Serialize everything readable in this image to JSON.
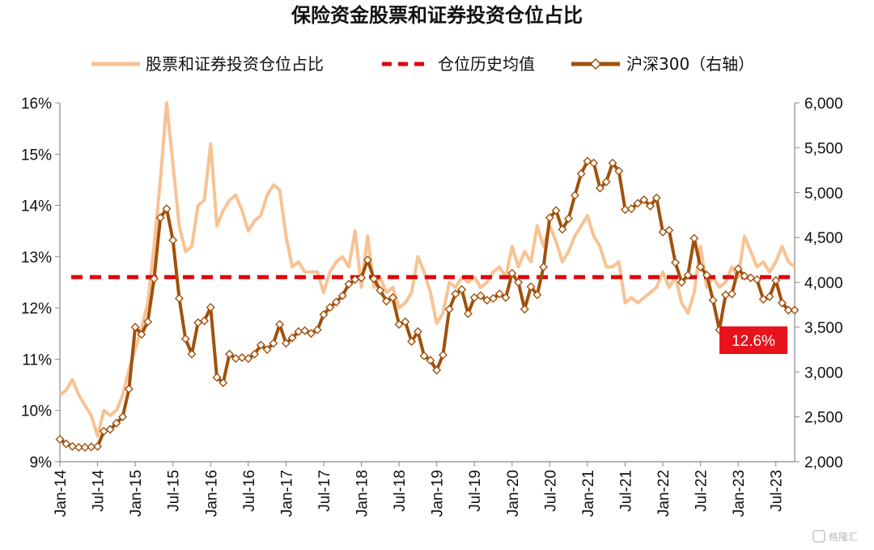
{
  "chart_data": {
    "type": "line",
    "title": "保险资金股票和证券投资仓位占比",
    "legend": [
      {
        "label": "股票和证券投资仓位占比",
        "color": "#F8C293",
        "style": "solid"
      },
      {
        "label": "仓位历史均值",
        "color": "#E0000A",
        "style": "dashed"
      },
      {
        "label": "沪深300（右轴）",
        "color": "#A0510C",
        "style": "line-diamond"
      }
    ],
    "legend_position": "top",
    "x_ticks": [
      "Jan-14",
      "Jul-14",
      "Jan-15",
      "Jul-15",
      "Jan-16",
      "Jul-16",
      "Jan-17",
      "Jul-17",
      "Jan-18",
      "Jul-18",
      "Jan-19",
      "Jul-19",
      "Jan-20",
      "Jul-20",
      "Jan-21",
      "Jul-21",
      "Jan-22",
      "Jul-22",
      "Jan-23",
      "Jul-23"
    ],
    "x_range": [
      "2014-01",
      "2023-10"
    ],
    "y_left": {
      "ticks": [
        "9%",
        "10%",
        "11%",
        "12%",
        "13%",
        "14%",
        "15%",
        "16%"
      ],
      "min": 9,
      "max": 16
    },
    "y_right": {
      "ticks": [
        "2,000",
        "2,500",
        "3,000",
        "3,500",
        "4,000",
        "4,500",
        "5,000",
        "5,500",
        "6,000"
      ],
      "min": 2000,
      "max": 6000
    },
    "grid": false,
    "average_line": 12.6,
    "annotation": {
      "text": "12.6%",
      "bg": "#E8121A"
    },
    "watermark": "格隆汇",
    "series": [
      {
        "name": "股票和证券投资仓位占比",
        "axis": "left",
        "points": [
          [
            "2014-01",
            10.3
          ],
          [
            "2014-02",
            10.4
          ],
          [
            "2014-03",
            10.6
          ],
          [
            "2014-04",
            10.3
          ],
          [
            "2014-05",
            10.1
          ],
          [
            "2014-06",
            9.9
          ],
          [
            "2014-07",
            9.5
          ],
          [
            "2014-08",
            10.0
          ],
          [
            "2014-09",
            9.9
          ],
          [
            "2014-10",
            10.0
          ],
          [
            "2014-11",
            10.3
          ],
          [
            "2014-12",
            10.8
          ],
          [
            "2015-01",
            11.2
          ],
          [
            "2015-02",
            11.6
          ],
          [
            "2015-03",
            12.1
          ],
          [
            "2015-04",
            13.2
          ],
          [
            "2015-05",
            14.5
          ],
          [
            "2015-06",
            16.0
          ],
          [
            "2015-07",
            14.8
          ],
          [
            "2015-08",
            13.6
          ],
          [
            "2015-09",
            13.1
          ],
          [
            "2015-10",
            13.2
          ],
          [
            "2015-11",
            14.0
          ],
          [
            "2015-12",
            14.1
          ],
          [
            "2016-01",
            15.2
          ],
          [
            "2016-02",
            13.6
          ],
          [
            "2016-03",
            13.9
          ],
          [
            "2016-04",
            14.1
          ],
          [
            "2016-05",
            14.2
          ],
          [
            "2016-06",
            13.9
          ],
          [
            "2016-07",
            13.5
          ],
          [
            "2016-08",
            13.7
          ],
          [
            "2016-09",
            13.8
          ],
          [
            "2016-10",
            14.2
          ],
          [
            "2016-11",
            14.4
          ],
          [
            "2016-12",
            14.3
          ],
          [
            "2017-01",
            13.4
          ],
          [
            "2017-02",
            12.8
          ],
          [
            "2017-03",
            12.9
          ],
          [
            "2017-04",
            12.7
          ],
          [
            "2017-05",
            12.7
          ],
          [
            "2017-06",
            12.7
          ],
          [
            "2017-07",
            12.3
          ],
          [
            "2017-08",
            12.7
          ],
          [
            "2017-09",
            12.9
          ],
          [
            "2017-10",
            13.0
          ],
          [
            "2017-11",
            12.8
          ],
          [
            "2017-12",
            13.5
          ],
          [
            "2018-01",
            12.4
          ],
          [
            "2018-02",
            13.4
          ],
          [
            "2018-03",
            12.4
          ],
          [
            "2018-04",
            12.6
          ],
          [
            "2018-05",
            12.3
          ],
          [
            "2018-06",
            12.4
          ],
          [
            "2018-07",
            12.0
          ],
          [
            "2018-08",
            12.1
          ],
          [
            "2018-09",
            12.3
          ],
          [
            "2018-10",
            13.0
          ],
          [
            "2018-11",
            12.7
          ],
          [
            "2018-12",
            12.3
          ],
          [
            "2019-01",
            11.7
          ],
          [
            "2019-02",
            11.9
          ],
          [
            "2019-03",
            12.5
          ],
          [
            "2019-04",
            12.4
          ],
          [
            "2019-05",
            12.6
          ],
          [
            "2019-06",
            12.5
          ],
          [
            "2019-07",
            12.6
          ],
          [
            "2019-08",
            12.4
          ],
          [
            "2019-09",
            12.5
          ],
          [
            "2019-10",
            12.7
          ],
          [
            "2019-11",
            12.8
          ],
          [
            "2019-12",
            12.6
          ],
          [
            "2020-01",
            13.2
          ],
          [
            "2020-02",
            12.8
          ],
          [
            "2020-03",
            13.1
          ],
          [
            "2020-04",
            12.9
          ],
          [
            "2020-05",
            13.6
          ],
          [
            "2020-06",
            13.2
          ],
          [
            "2020-07",
            13.6
          ],
          [
            "2020-08",
            13.3
          ],
          [
            "2020-09",
            12.9
          ],
          [
            "2020-10",
            13.1
          ],
          [
            "2020-11",
            13.4
          ],
          [
            "2020-12",
            13.6
          ],
          [
            "2021-01",
            13.8
          ],
          [
            "2021-02",
            13.4
          ],
          [
            "2021-03",
            13.2
          ],
          [
            "2021-04",
            12.8
          ],
          [
            "2021-05",
            12.8
          ],
          [
            "2021-06",
            12.9
          ],
          [
            "2021-07",
            12.1
          ],
          [
            "2021-08",
            12.2
          ],
          [
            "2021-09",
            12.1
          ],
          [
            "2021-10",
            12.2
          ],
          [
            "2021-11",
            12.3
          ],
          [
            "2021-12",
            12.4
          ],
          [
            "2022-01",
            12.7
          ],
          [
            "2022-02",
            12.4
          ],
          [
            "2022-03",
            12.6
          ],
          [
            "2022-04",
            12.1
          ],
          [
            "2022-05",
            11.9
          ],
          [
            "2022-06",
            12.3
          ],
          [
            "2022-07",
            13.2
          ],
          [
            "2022-08",
            12.4
          ],
          [
            "2022-09",
            12.6
          ],
          [
            "2022-10",
            12.4
          ],
          [
            "2022-11",
            12.5
          ],
          [
            "2022-12",
            12.8
          ],
          [
            "2023-01",
            12.6
          ],
          [
            "2023-02",
            13.4
          ],
          [
            "2023-03",
            13.1
          ],
          [
            "2023-04",
            12.8
          ],
          [
            "2023-05",
            12.9
          ],
          [
            "2023-06",
            12.7
          ],
          [
            "2023-07",
            12.9
          ],
          [
            "2023-08",
            13.2
          ],
          [
            "2023-09",
            12.9
          ],
          [
            "2023-10",
            12.8
          ]
        ]
      },
      {
        "name": "沪深300（右轴）",
        "axis": "right",
        "points": [
          [
            "2014-01",
            2250
          ],
          [
            "2014-02",
            2200
          ],
          [
            "2014-03",
            2170
          ],
          [
            "2014-04",
            2160
          ],
          [
            "2014-05",
            2160
          ],
          [
            "2014-06",
            2165
          ],
          [
            "2014-07",
            2170
          ],
          [
            "2014-08",
            2340
          ],
          [
            "2014-09",
            2360
          ],
          [
            "2014-10",
            2430
          ],
          [
            "2014-11",
            2500
          ],
          [
            "2014-12",
            2810
          ],
          [
            "2015-01",
            3500
          ],
          [
            "2015-02",
            3420
          ],
          [
            "2015-03",
            3560
          ],
          [
            "2015-04",
            4040
          ],
          [
            "2015-05",
            4720
          ],
          [
            "2015-06",
            4820
          ],
          [
            "2015-07",
            4470
          ],
          [
            "2015-08",
            3820
          ],
          [
            "2015-09",
            3370
          ],
          [
            "2015-10",
            3200
          ],
          [
            "2015-11",
            3550
          ],
          [
            "2015-12",
            3570
          ],
          [
            "2016-01",
            3720
          ],
          [
            "2016-02",
            2940
          ],
          [
            "2016-03",
            2880
          ],
          [
            "2016-04",
            3200
          ],
          [
            "2016-05",
            3150
          ],
          [
            "2016-06",
            3160
          ],
          [
            "2016-07",
            3150
          ],
          [
            "2016-08",
            3200
          ],
          [
            "2016-09",
            3300
          ],
          [
            "2016-10",
            3250
          ],
          [
            "2016-11",
            3320
          ],
          [
            "2016-12",
            3530
          ],
          [
            "2017-01",
            3320
          ],
          [
            "2017-02",
            3380
          ],
          [
            "2017-03",
            3450
          ],
          [
            "2017-04",
            3460
          ],
          [
            "2017-05",
            3430
          ],
          [
            "2017-06",
            3470
          ],
          [
            "2017-07",
            3640
          ],
          [
            "2017-08",
            3720
          ],
          [
            "2017-09",
            3780
          ],
          [
            "2017-10",
            3850
          ],
          [
            "2017-11",
            3980
          ],
          [
            "2017-12",
            4030
          ],
          [
            "2018-01",
            4050
          ],
          [
            "2018-02",
            4250
          ],
          [
            "2018-03",
            4040
          ],
          [
            "2018-04",
            3910
          ],
          [
            "2018-05",
            3790
          ],
          [
            "2018-06",
            3830
          ],
          [
            "2018-07",
            3530
          ],
          [
            "2018-08",
            3560
          ],
          [
            "2018-09",
            3340
          ],
          [
            "2018-10",
            3450
          ],
          [
            "2018-11",
            3180
          ],
          [
            "2018-12",
            3130
          ],
          [
            "2019-01",
            3020
          ],
          [
            "2019-02",
            3190
          ],
          [
            "2019-03",
            3700
          ],
          [
            "2019-04",
            3870
          ],
          [
            "2019-05",
            3920
          ],
          [
            "2019-06",
            3650
          ],
          [
            "2019-07",
            3830
          ],
          [
            "2019-08",
            3850
          ],
          [
            "2019-09",
            3800
          ],
          [
            "2019-10",
            3820
          ],
          [
            "2019-11",
            3870
          ],
          [
            "2019-12",
            3830
          ],
          [
            "2020-01",
            4100
          ],
          [
            "2020-02",
            4000
          ],
          [
            "2020-03",
            3700
          ],
          [
            "2020-04",
            3950
          ],
          [
            "2020-05",
            3860
          ],
          [
            "2020-06",
            4170
          ],
          [
            "2020-07",
            4720
          ],
          [
            "2020-08",
            4800
          ],
          [
            "2020-09",
            4590
          ],
          [
            "2020-10",
            4710
          ],
          [
            "2020-11",
            4970
          ],
          [
            "2020-12",
            5210
          ],
          [
            "2021-01",
            5350
          ],
          [
            "2021-02",
            5330
          ],
          [
            "2021-03",
            5050
          ],
          [
            "2021-04",
            5120
          ],
          [
            "2021-05",
            5330
          ],
          [
            "2021-06",
            5240
          ],
          [
            "2021-07",
            4810
          ],
          [
            "2021-08",
            4820
          ],
          [
            "2021-09",
            4880
          ],
          [
            "2021-10",
            4920
          ],
          [
            "2021-11",
            4850
          ],
          [
            "2021-12",
            4940
          ],
          [
            "2022-01",
            4560
          ],
          [
            "2022-02",
            4580
          ],
          [
            "2022-03",
            4220
          ],
          [
            "2022-04",
            4000
          ],
          [
            "2022-05",
            4080
          ],
          [
            "2022-06",
            4490
          ],
          [
            "2022-07",
            4170
          ],
          [
            "2022-08",
            4080
          ],
          [
            "2022-09",
            3800
          ],
          [
            "2022-10",
            3470
          ],
          [
            "2022-11",
            3860
          ],
          [
            "2022-12",
            3870
          ],
          [
            "2023-01",
            4150
          ],
          [
            "2023-02",
            4070
          ],
          [
            "2023-03",
            4050
          ],
          [
            "2023-04",
            4030
          ],
          [
            "2023-05",
            3810
          ],
          [
            "2023-06",
            3840
          ],
          [
            "2023-07",
            4020
          ],
          [
            "2023-08",
            3770
          ],
          [
            "2023-09",
            3690
          ],
          [
            "2023-10",
            3690
          ]
        ]
      }
    ]
  }
}
